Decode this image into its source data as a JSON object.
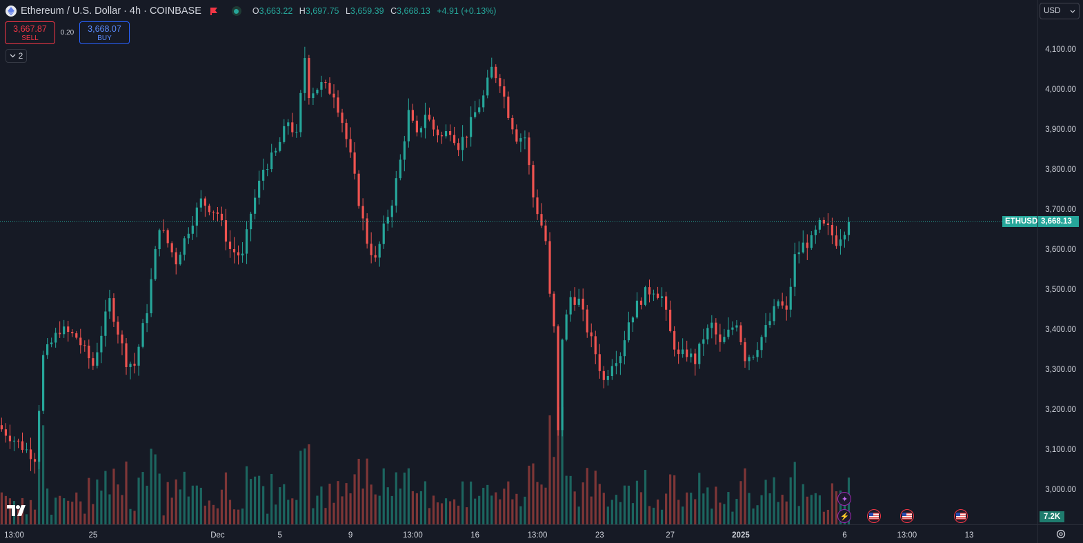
{
  "header": {
    "title": "Ethereum / U.S. Dollar · 4h · COINBASE",
    "o_label": "O",
    "o_value": "3,663.22",
    "h_label": "H",
    "h_value": "3,697.75",
    "l_label": "L",
    "l_value": "3,659.39",
    "c_label": "C",
    "c_value": "3,668.13",
    "change": "+4.91 (+0.13%)"
  },
  "trade": {
    "sell_price": "3,667.87",
    "sell_label": "SELL",
    "spread": "0.20",
    "buy_price": "3,668.07",
    "buy_label": "BUY"
  },
  "indicators_count": "2",
  "currency": "USD",
  "price_tag": {
    "symbol": "ETHUSD",
    "price": "3,668.13"
  },
  "volume_tag": "7.2K",
  "colors": {
    "up": "#26a69a",
    "down": "#ef5350",
    "bg": "#161a25",
    "grid": "#1e222d"
  },
  "icons": [
    "ethereum-icon",
    "flag-icon",
    "market-open-icon",
    "chevron-down-icon",
    "gear-icon",
    "us-flag-icon",
    "lightning-icon",
    "sparkle-icon"
  ],
  "chart_data": {
    "type": "candlestick",
    "y_ticks": [
      "4,100.00",
      "4,000.00",
      "3,900.00",
      "3,800.00",
      "3,700.00",
      "3,600.00",
      "3,500.00",
      "3,400.00",
      "3,300.00",
      "3,200.00",
      "3,100.00",
      "3,000.00"
    ],
    "y_tick_values": [
      4100,
      4000,
      3900,
      3800,
      3700,
      3600,
      3500,
      3400,
      3300,
      3200,
      3100,
      3000
    ],
    "x_ticks": [
      {
        "label": "13:00",
        "bar": 3
      },
      {
        "label": "25",
        "bar": 22
      },
      {
        "label": "Dec",
        "bar": 52
      },
      {
        "label": "5",
        "bar": 67
      },
      {
        "label": "9",
        "bar": 84
      },
      {
        "label": "13:00",
        "bar": 99
      },
      {
        "label": "16",
        "bar": 114
      },
      {
        "label": "13:00",
        "bar": 129
      },
      {
        "label": "23",
        "bar": 144
      },
      {
        "label": "27",
        "bar": 161
      },
      {
        "label": "2025",
        "bar": 178
      },
      {
        "label": "6",
        "bar": 203
      },
      {
        "label": "13:00",
        "bar": 218
      },
      {
        "label": "13",
        "bar": 233
      }
    ],
    "current_price": 3668.13,
    "ylim": [
      2960,
      4160
    ],
    "anchors": [
      [
        0,
        3150
      ],
      [
        8,
        3080
      ],
      [
        10,
        3330
      ],
      [
        14,
        3400
      ],
      [
        18,
        3380
      ],
      [
        22,
        3310
      ],
      [
        26,
        3470
      ],
      [
        30,
        3320
      ],
      [
        32,
        3310
      ],
      [
        35,
        3450
      ],
      [
        38,
        3660
      ],
      [
        42,
        3570
      ],
      [
        45,
        3650
      ],
      [
        48,
        3720
      ],
      [
        52,
        3690
      ],
      [
        55,
        3600
      ],
      [
        58,
        3580
      ],
      [
        60,
        3690
      ],
      [
        63,
        3800
      ],
      [
        66,
        3840
      ],
      [
        69,
        3920
      ],
      [
        71,
        3880
      ],
      [
        73,
        4080
      ],
      [
        74,
        3990
      ],
      [
        77,
        4010
      ],
      [
        80,
        3990
      ],
      [
        82,
        3920
      ],
      [
        84,
        3830
      ],
      [
        86,
        3720
      ],
      [
        88,
        3620
      ],
      [
        90,
        3570
      ],
      [
        92,
        3650
      ],
      [
        94,
        3720
      ],
      [
        96,
        3820
      ],
      [
        98,
        3940
      ],
      [
        100,
        3880
      ],
      [
        102,
        3940
      ],
      [
        104,
        3900
      ],
      [
        106,
        3880
      ],
      [
        108,
        3900
      ],
      [
        110,
        3860
      ],
      [
        112,
        3890
      ],
      [
        114,
        3940
      ],
      [
        116,
        3980
      ],
      [
        118,
        4050
      ],
      [
        120,
        4020
      ],
      [
        122,
        3940
      ],
      [
        124,
        3880
      ],
      [
        126,
        3880
      ],
      [
        128,
        3730
      ],
      [
        130,
        3660
      ],
      [
        131,
        3620
      ],
      [
        132,
        3480
      ],
      [
        133,
        3400
      ],
      [
        134,
        3140
      ],
      [
        135,
        3380
      ],
      [
        137,
        3480
      ],
      [
        139,
        3470
      ],
      [
        141,
        3400
      ],
      [
        143,
        3340
      ],
      [
        145,
        3270
      ],
      [
        147,
        3320
      ],
      [
        149,
        3340
      ],
      [
        151,
        3420
      ],
      [
        153,
        3460
      ],
      [
        155,
        3490
      ],
      [
        157,
        3500
      ],
      [
        159,
        3480
      ],
      [
        161,
        3390
      ],
      [
        163,
        3330
      ],
      [
        165,
        3340
      ],
      [
        167,
        3320
      ],
      [
        169,
        3380
      ],
      [
        171,
        3410
      ],
      [
        173,
        3360
      ],
      [
        175,
        3390
      ],
      [
        177,
        3420
      ],
      [
        179,
        3330
      ],
      [
        181,
        3340
      ],
      [
        183,
        3380
      ],
      [
        185,
        3420
      ],
      [
        187,
        3470
      ],
      [
        189,
        3440
      ],
      [
        191,
        3580
      ],
      [
        193,
        3610
      ],
      [
        195,
        3620
      ],
      [
        197,
        3660
      ],
      [
        199,
        3650
      ],
      [
        201,
        3620
      ],
      [
        203,
        3650
      ],
      [
        204,
        3668
      ]
    ]
  },
  "events": [
    {
      "type": "sparkle",
      "bar": 203
    },
    {
      "type": "lightning",
      "bar": 203
    },
    {
      "type": "us-flag",
      "bar": 210
    },
    {
      "type": "us-flag",
      "bar": 218
    },
    {
      "type": "us-flag",
      "bar": 231
    }
  ]
}
